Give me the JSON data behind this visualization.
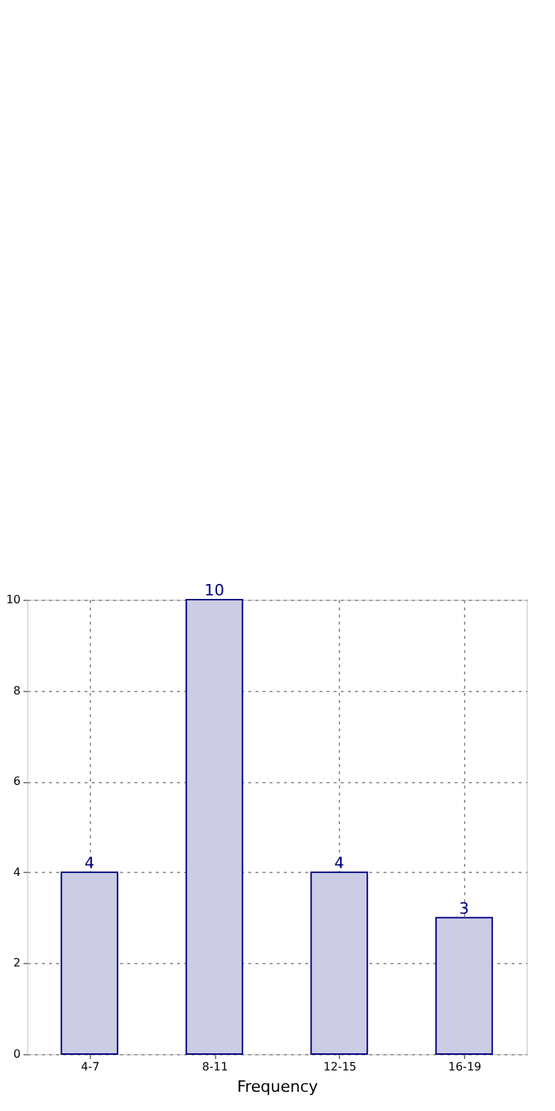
{
  "chart_data": {
    "type": "bar",
    "xlabel": "Frequency",
    "categories": [
      "4-7",
      "8-11",
      "12-15",
      "16-19"
    ],
    "values": [
      4,
      10,
      4,
      3
    ],
    "color": "#cccce5",
    "ylim": [
      0,
      10
    ],
    "yticks": [
      0,
      2,
      4,
      6,
      8,
      10
    ],
    "grid": true,
    "data_labels": true
  }
}
